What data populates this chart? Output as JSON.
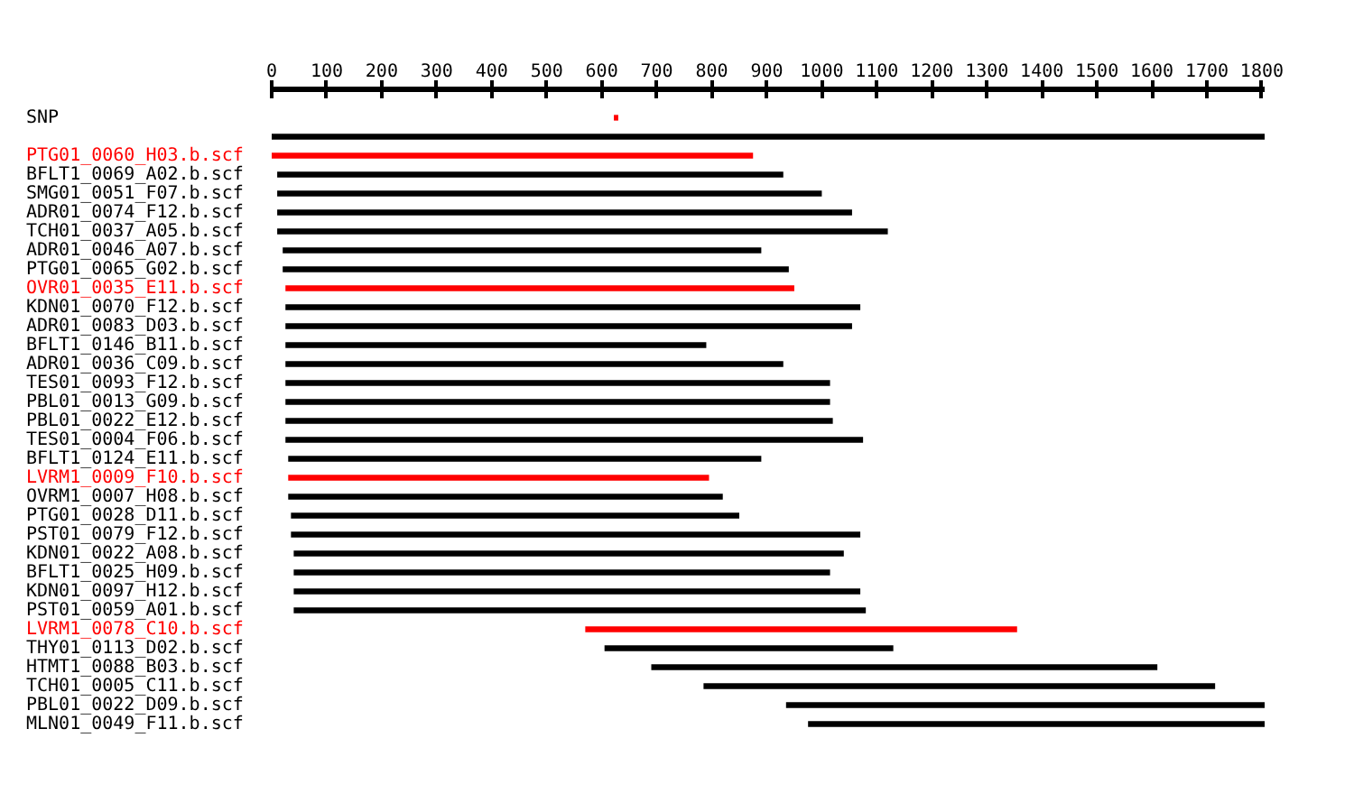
{
  "chart_data": {
    "type": "bar",
    "orientation": "horizontal",
    "categories": [
      "SNP",
      null,
      "PTG01_0060_H03.b.scf",
      "BFLT1_0069_A02.b.scf",
      "SMG01_0051_F07.b.scf",
      "ADR01_0074_F12.b.scf",
      "TCH01_0037_A05.b.scf",
      "ADR01_0046_A07.b.scf",
      "PTG01_0065_G02.b.scf",
      "OVR01_0035_E11.b.scf",
      "KDN01_0070_F12.b.scf",
      "ADR01_0083_D03.b.scf",
      "BFLT1_0146_B11.b.scf",
      "ADR01_0036_C09.b.scf",
      "TES01_0093_F12.b.scf",
      "PBL01_0013_G09.b.scf",
      "PBL01_0022_E12.b.scf",
      "TES01_0004_F06.b.scf",
      "BFLT1_0124_E11.b.scf",
      "LVRM1_0009_F10.b.scf",
      "OVRM1_0007_H08.b.scf",
      "PTG01_0028_D11.b.scf",
      "PST01_0079_F12.b.scf",
      "KDN01_0022_A08.b.scf",
      "BFLT1_0025_H09.b.scf",
      "KDN01_0097_H12.b.scf",
      "PST01_0059_A01.b.scf",
      "LVRM1_0078_C10.b.scf",
      "THY01_0113_D02.b.scf",
      "HTMT1_0088_B03.b.scf",
      "TCH01_0005_C11.b.scf",
      "PBL01_0022_D09.b.scf",
      "MLN01_0049_F11.b.scf"
    ],
    "series": [
      {
        "base": [
          null,
          0,
          0,
          10,
          10,
          10,
          10,
          20,
          20,
          25,
          25,
          25,
          25,
          25,
          25,
          25,
          25,
          25,
          30,
          30,
          30,
          35,
          35,
          40,
          40,
          40,
          40,
          570,
          605,
          690,
          785,
          935,
          975
        ],
        "values": [
          null,
          1805,
          875,
          920,
          990,
          1045,
          1110,
          870,
          920,
          925,
          1045,
          1030,
          765,
          905,
          990,
          990,
          995,
          1050,
          860,
          765,
          790,
          815,
          1035,
          1000,
          975,
          1030,
          1040,
          785,
          525,
          920,
          930,
          870,
          830
        ],
        "colors": [
          null,
          "#000000",
          "#ff0000",
          "#000000",
          "#000000",
          "#000000",
          "#000000",
          "#000000",
          "#000000",
          "#ff0000",
          "#000000",
          "#000000",
          "#000000",
          "#000000",
          "#000000",
          "#000000",
          "#000000",
          "#000000",
          "#000000",
          "#ff0000",
          "#000000",
          "#000000",
          "#000000",
          "#000000",
          "#000000",
          "#000000",
          "#000000",
          "#ff0000",
          "#000000",
          "#000000",
          "#000000",
          "#000000",
          "#000000"
        ]
      },
      {
        "base": [
          622,
          null,
          null,
          null,
          null,
          null,
          null,
          null,
          null,
          null,
          null,
          null,
          null,
          null,
          null,
          null,
          null,
          null,
          null,
          null,
          null,
          null,
          null,
          null,
          null,
          null,
          null,
          null,
          null,
          null,
          null,
          null,
          null
        ],
        "values": [
          8,
          null,
          null,
          null,
          null,
          null,
          null,
          null,
          null,
          null,
          null,
          null,
          null,
          null,
          null,
          null,
          null,
          null,
          null,
          null,
          null,
          null,
          null,
          null,
          null,
          null,
          null,
          null,
          null,
          null,
          null,
          null,
          null
        ],
        "color": "#ff0000"
      }
    ],
    "xlim": [
      0,
      1805
    ],
    "xticks": [
      0,
      100,
      200,
      300,
      400,
      500,
      600,
      700,
      800,
      900,
      1000,
      1100,
      1200,
      1300,
      1400,
      1500,
      1600,
      1700,
      1800
    ]
  }
}
